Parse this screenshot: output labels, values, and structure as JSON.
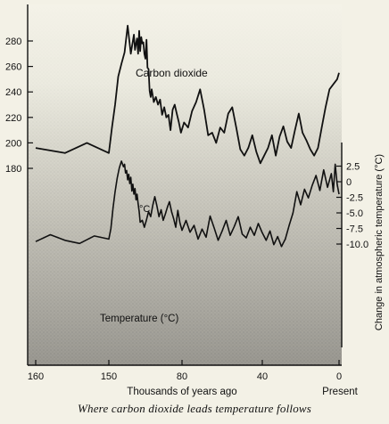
{
  "chart_data": {
    "type": "line",
    "xlabel": "Thousands of years ago",
    "x_ticks": [
      "160",
      "150",
      "80",
      "40",
      "0"
    ],
    "x_end_label": "Present",
    "left_ticks": [
      "280",
      "260",
      "240",
      "220",
      "200",
      "180"
    ],
    "right_ticks": [
      "2.5",
      "0",
      "-2.5",
      "-5.0",
      "-7.5",
      "-10.0"
    ],
    "right_ylabel": "Change in atmospheric temperature (°C)",
    "caption": "Where carbon dioxide leads temperature follows",
    "series": [
      {
        "name": "Carbon dioxide",
        "axis": "left",
        "x": [
          160,
          156,
          153,
          150,
          147,
          144,
          141,
          138,
          135,
          132,
          129,
          126,
          125,
          124,
          123,
          122,
          121,
          120,
          119,
          118,
          117,
          116,
          115,
          114,
          113,
          112,
          111,
          110,
          109,
          107,
          105,
          103,
          101,
          99,
          97,
          95,
          93,
          91,
          89,
          87,
          85,
          83,
          81,
          79,
          77,
          75,
          73,
          71,
          69,
          67,
          65,
          63,
          61,
          59,
          57,
          55,
          53,
          51,
          49,
          47,
          45,
          43,
          41,
          39,
          37,
          35,
          33,
          31,
          29,
          27,
          25,
          23,
          21,
          19,
          17,
          15,
          13,
          11,
          9,
          7,
          5,
          3,
          1,
          0
        ],
        "y": [
          196,
          192,
          200,
          192,
          212,
          230,
          252,
          262,
          271,
          292,
          270,
          285,
          273,
          278,
          282,
          270,
          288,
          272,
          283,
          278,
          279,
          270,
          266,
          281,
          259,
          258,
          241,
          236,
          242,
          232,
          236,
          230,
          234,
          222,
          228,
          220,
          222,
          210,
          226,
          230,
          223,
          216,
          208,
          216,
          212,
          225,
          232,
          242,
          226,
          206,
          208,
          200,
          212,
          208,
          223,
          228,
          212,
          195,
          190,
          196,
          206,
          193,
          184,
          190,
          196,
          206,
          190,
          205,
          213,
          201,
          196,
          210,
          223,
          208,
          202,
          195,
          190,
          196,
          212,
          228,
          242,
          246,
          250,
          255
        ]
      },
      {
        "name": "Temperature (°C)",
        "axis": "right",
        "x": [
          160,
          158,
          156,
          154,
          152,
          150,
          148,
          146,
          144,
          142,
          140,
          138,
          136,
          135,
          134,
          133,
          132,
          131,
          130,
          129,
          128,
          127,
          126,
          125,
          124,
          123,
          122,
          121,
          120,
          118,
          116,
          114,
          112,
          110,
          108,
          106,
          104,
          102,
          100,
          98,
          96,
          94,
          92,
          90,
          88,
          86,
          84,
          82,
          80,
          78,
          76,
          74,
          72,
          70,
          68,
          66,
          64,
          62,
          60,
          58,
          56,
          54,
          52,
          50,
          48,
          46,
          44,
          42,
          40,
          38,
          36,
          34,
          32,
          30,
          28,
          26,
          24,
          22,
          20,
          18,
          16,
          14,
          12,
          10,
          8,
          6,
          4,
          3,
          2,
          1,
          0
        ],
        "y": [
          -9.6,
          -8.5,
          -9.4,
          -9.9,
          -8.7,
          -9.2,
          -7.5,
          -4.2,
          -1.6,
          0.6,
          2.2,
          3.3,
          2.4,
          2.8,
          1.4,
          1.8,
          0.3,
          1.2,
          -0.3,
          0.7,
          -1.5,
          -0.4,
          -2.0,
          -1.1,
          -2.9,
          -2.0,
          -3.5,
          -4.8,
          -6.5,
          -6.2,
          -7.3,
          -6.1,
          -4.8,
          -5.6,
          -3.8,
          -2.4,
          -3.9,
          -5.6,
          -4.5,
          -6.2,
          -5.2,
          -4.1,
          -3.2,
          -4.8,
          -5.9,
          -7.3,
          -4.6,
          -6.6,
          -7.8,
          -6.2,
          -8.1,
          -7.0,
          -9.2,
          -7.6,
          -8.9,
          -5.5,
          -7.4,
          -9.4,
          -7.9,
          -6.2,
          -8.6,
          -7.2,
          -5.6,
          -8.4,
          -9.0,
          -7.3,
          -8.6,
          -6.7,
          -8.2,
          -9.4,
          -7.9,
          -10.1,
          -8.8,
          -10.4,
          -9.2,
          -7.0,
          -5.0,
          -1.6,
          -3.7,
          -1.2,
          -2.6,
          -0.6,
          1.0,
          -1.4,
          1.9,
          -0.9,
          1.3,
          -1.6,
          2.8,
          -0.4,
          -2.0
        ]
      }
    ],
    "annotations": [
      "Carbon dioxide",
      "°C",
      "Temperature (°C)"
    ]
  }
}
